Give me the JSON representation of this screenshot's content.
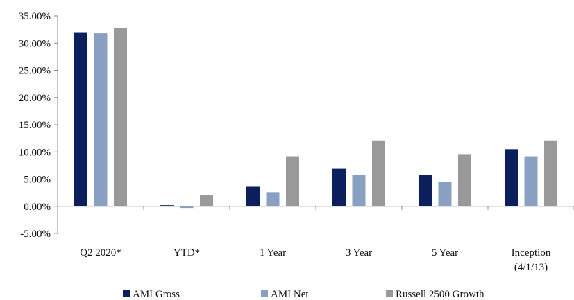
{
  "chart_data": {
    "type": "bar",
    "title": "",
    "xlabel": "",
    "ylabel": "",
    "ylim": [
      -5,
      35
    ],
    "y_ticks": [
      "35.00%",
      "30.00%",
      "25.00%",
      "20.00%",
      "15.00%",
      "10.00%",
      "5.00%",
      "0.00%",
      "-5.00%"
    ],
    "y_tick_values": [
      35,
      30,
      25,
      20,
      15,
      10,
      5,
      0,
      -5
    ],
    "categories": [
      "Q2 2020*",
      "YTD*",
      "1 Year",
      "3 Year",
      "5 Year",
      "Inception"
    ],
    "category_sublabels": [
      "",
      "",
      "",
      "",
      "",
      "(4/1/13)"
    ],
    "series": [
      {
        "name": "AMI Gross",
        "color": "#0a1f5c",
        "values": [
          32.0,
          0.2,
          3.6,
          6.9,
          5.8,
          10.5
        ]
      },
      {
        "name": "AMI Net",
        "color": "#8aa0c2",
        "values": [
          31.8,
          -0.3,
          2.6,
          5.7,
          4.5,
          9.2
        ]
      },
      {
        "name": "Russell 2500 Growth",
        "color": "#999999",
        "values": [
          32.8,
          2.0,
          9.2,
          12.1,
          9.6,
          12.1
        ]
      }
    ],
    "grid": false,
    "legend_position": "bottom"
  }
}
